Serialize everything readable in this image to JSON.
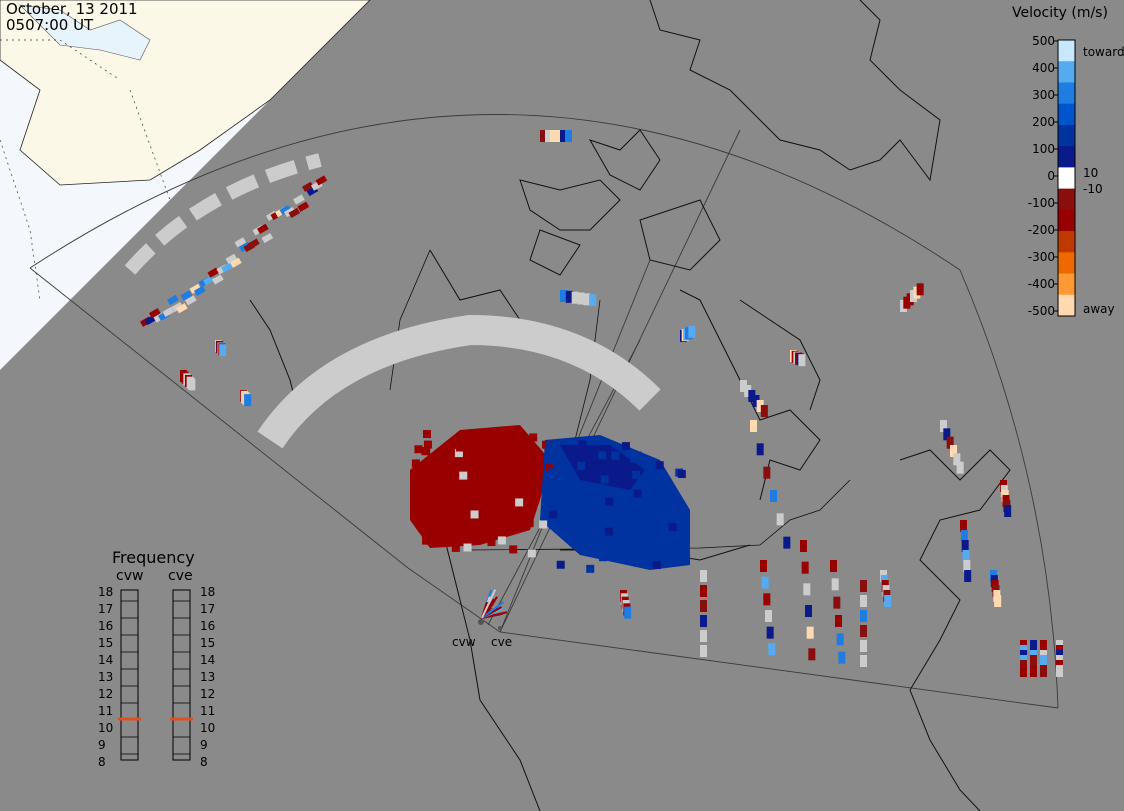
{
  "header": {
    "date": "October, 13 2011",
    "time": "0507:00 UT"
  },
  "colorbar": {
    "title": "Velocity (m/s)",
    "ticks": [
      "500",
      "400",
      "300",
      "200",
      "100",
      "0",
      "-100",
      "-200",
      "-300",
      "-400",
      "-500"
    ],
    "inner_labels": [
      "10",
      "-10"
    ],
    "end_labels": {
      "top": "toward",
      "bottom": "away"
    },
    "colors": [
      "#ffd9b0",
      "#ff9933",
      "#ee6a00",
      "#c03a00",
      "#990000",
      "#8a0e0e",
      "#ffffff",
      "#0a1a8a",
      "#0033a0",
      "#0055cc",
      "#1e7de0",
      "#55aaf0",
      "#c8e8ff"
    ]
  },
  "frequency": {
    "title": "Frequency",
    "radars": [
      "cvw",
      "cve"
    ],
    "levels": [
      "18",
      "17",
      "16",
      "15",
      "14",
      "13",
      "12",
      "11",
      "10",
      "9",
      "8"
    ],
    "values": [
      10.5,
      10.5
    ],
    "marker_color": "#e0501e"
  },
  "sites": [
    "cvw",
    "cve"
  ],
  "map_colors": {
    "ocean": "#8a8a8a",
    "daylight": "#f4f8fc",
    "land_day": "#fbf8e8",
    "ground_scatter": "#cccccc"
  }
}
